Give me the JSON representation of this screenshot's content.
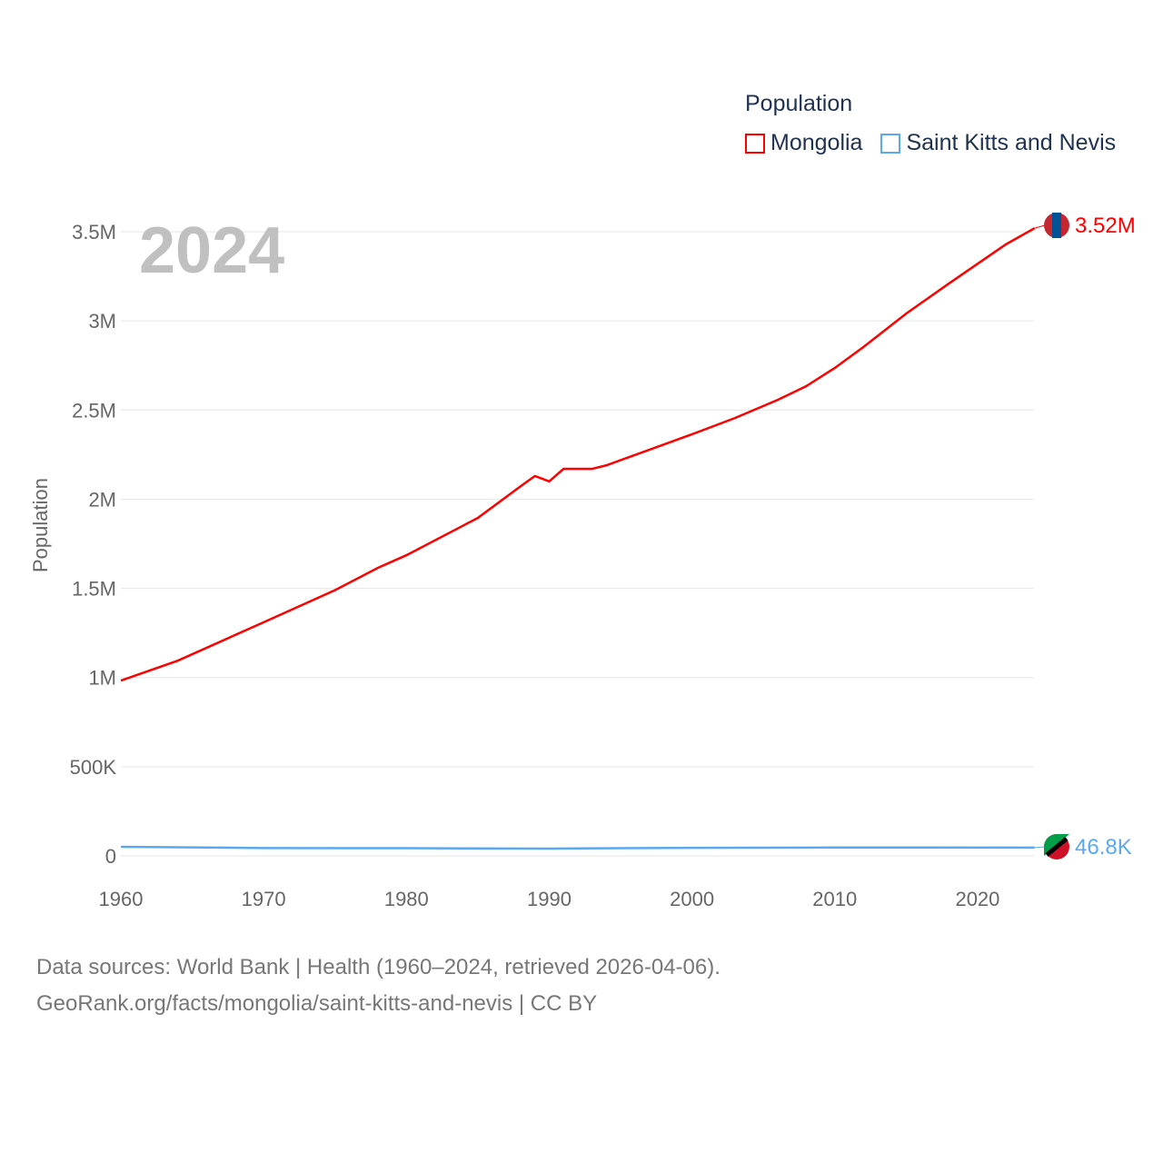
{
  "chart_data": {
    "type": "line",
    "title": "Population",
    "ylabel": "Population",
    "xlabel": "",
    "year_label": "2024",
    "xlim": [
      1960,
      2024
    ],
    "ylim": [
      0,
      3500000
    ],
    "x_ticks": [
      "1960",
      "1970",
      "1980",
      "1990",
      "2000",
      "2010",
      "2020"
    ],
    "y_ticks": [
      {
        "v": 0,
        "l": "0"
      },
      {
        "v": 500000,
        "l": "500K"
      },
      {
        "v": 1000000,
        "l": "1M"
      },
      {
        "v": 1500000,
        "l": "1.5M"
      },
      {
        "v": 2000000,
        "l": "2M"
      },
      {
        "v": 2500000,
        "l": "2.5M"
      },
      {
        "v": 3000000,
        "l": "3M"
      },
      {
        "v": 3500000,
        "l": "3.5M"
      }
    ],
    "grid": true,
    "legend_position": "top-right",
    "series": [
      {
        "name": "Mongolia",
        "color": "#ff0000",
        "end_label": "3.52M",
        "x": [
          1960,
          1964,
          1970,
          1975,
          1978,
          1980,
          1985,
          1988,
          1989,
          1990,
          1991,
          1993,
          1994,
          1997,
          2000,
          2003,
          2006,
          2008,
          2010,
          2012,
          2015,
          2018,
          2020,
          2022,
          2024
        ],
        "y": [
          983000,
          1095000,
          1310000,
          1490000,
          1615000,
          1686000,
          1895000,
          2073000,
          2130000,
          2100000,
          2170000,
          2170000,
          2190000,
          2277000,
          2364000,
          2455000,
          2557000,
          2634000,
          2736000,
          2853000,
          3041000,
          3210000,
          3320000,
          3430000,
          3520000
        ]
      },
      {
        "name": "Saint Kitts and Nevis",
        "color": "#5aa9f0",
        "end_label": "46.8K",
        "x": [
          1960,
          1965,
          1970,
          1980,
          1990,
          2000,
          2010,
          2024
        ],
        "y": [
          51000,
          48000,
          44000,
          43000,
          41000,
          45000,
          47000,
          46800
        ]
      }
    ]
  },
  "footer": {
    "line1": "Data sources: World Bank | Health (1960–2024, retrieved 2026-04-06).",
    "line2": "GeoRank.org/facts/mongolia/saint-kitts-and-nevis | CC BY"
  }
}
